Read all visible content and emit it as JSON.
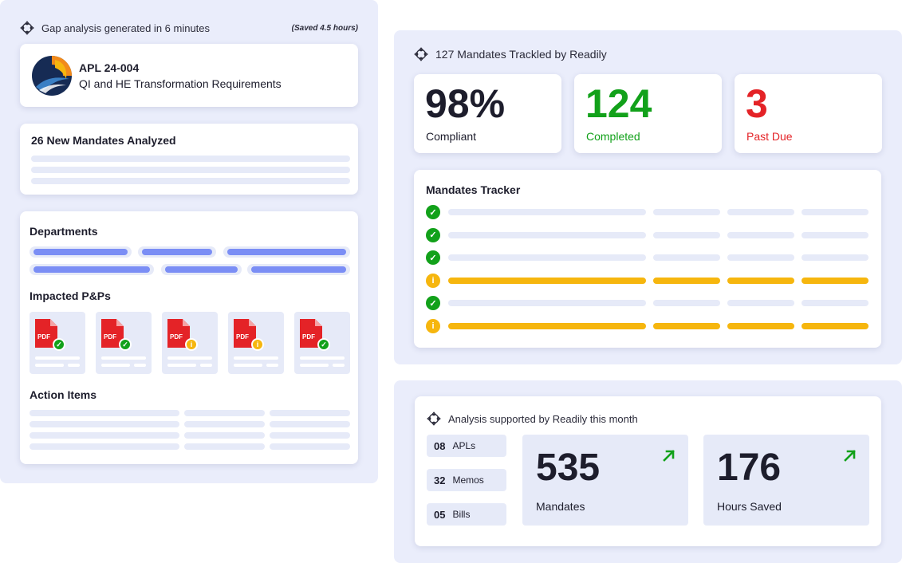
{
  "left_panel": {
    "header_text": "Gap analysis generated in 6 minutes",
    "saved_text": "(Saved 4.5 hours)",
    "apl_card": {
      "code": "APL 24-004",
      "subtitle": "QI and HE Transformation Requirements"
    },
    "mandates_card": {
      "title": "26 New Mandates Analyzed"
    },
    "departments_title": "Departments",
    "impacted_title": "Impacted P&Ps",
    "pdf_label": "PDF",
    "pdf_status": [
      "ok",
      "ok",
      "info",
      "info",
      "ok"
    ],
    "action_items_title": "Action Items"
  },
  "tracked_panel": {
    "header_text": "127 Mandates Trackled by Readily",
    "stats": [
      {
        "value": "98%",
        "label": "Compliant",
        "color": "#1d1d2c"
      },
      {
        "value": "124",
        "label": "Completed",
        "color": "#12a11a"
      },
      {
        "value": "3",
        "label": "Past Due",
        "color": "#e42327"
      }
    ],
    "tracker_title": "Mandates Tracker",
    "tracker_rows": [
      "ok",
      "ok",
      "ok",
      "info",
      "ok",
      "info"
    ]
  },
  "monthly_panel": {
    "header_text": "Analysis supported by Readily this month",
    "mini_stats": [
      {
        "value": "08",
        "label": "APLs"
      },
      {
        "value": "32",
        "label": "Memos"
      },
      {
        "value": "05",
        "label": "Bills"
      }
    ],
    "big_stats": [
      {
        "value": "535",
        "label": "Mandates"
      },
      {
        "value": "176",
        "label": "Hours Saved"
      }
    ]
  },
  "icons": {
    "readily_logo": "readily-logo-icon",
    "check": "check-icon",
    "info": "info-icon",
    "trend_up": "arrow-up-right-icon",
    "pdf": "pdf-file-icon"
  },
  "colors": {
    "green": "#12a11a",
    "red": "#e42327",
    "yellow": "#f6b60e",
    "blue_bar": "#7b8ef5",
    "panel_bg": "#eaedfb"
  }
}
